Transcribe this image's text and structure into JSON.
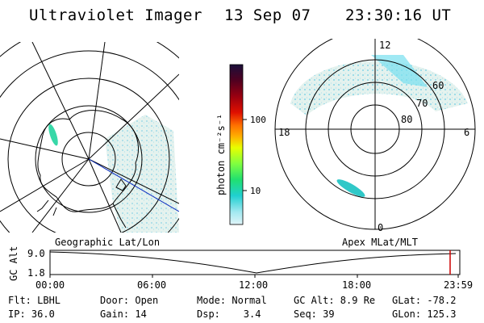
{
  "header": {
    "instrument": "Ultraviolet Imager",
    "date": "13 Sep 07",
    "time": "23:30:16 UT"
  },
  "left_map": {
    "caption": "Geographic Lat/Lon"
  },
  "right_map": {
    "caption": "Apex MLat/MLT",
    "mlt_labels": {
      "top": "12",
      "left": "18",
      "right": "6",
      "bottom": "0"
    },
    "lat_labels": [
      "60",
      "70",
      "80"
    ]
  },
  "colorbar": {
    "unit_label": "photon cm⁻²s⁻¹",
    "ticks": [
      "100",
      "10"
    ],
    "colors": [
      "#1a0f3a",
      "#500020",
      "#8a0010",
      "#c00000",
      "#f03000",
      "#ff8000",
      "#ffd000",
      "#e0ff00",
      "#80ff40",
      "#20e070",
      "#20d0d0",
      "#80e8f0",
      "#d0f0f8"
    ]
  },
  "timeline": {
    "axis_label": "GC Alt",
    "y_ticks": [
      "9.0",
      "1.8"
    ],
    "x_ticks": [
      "00:00",
      "06:00",
      "12:00",
      "18:00",
      "23:59"
    ],
    "marker_color": "#cc0000"
  },
  "footer": {
    "rows": [
      [
        "Flt: LBHL",
        "Door: Open",
        "Mode: Normal",
        "GC Alt: 8.9 Re",
        "GLat: -78.2"
      ],
      [
        "IP: 36.0",
        "Gain: 14",
        "Dsp:    3.4",
        "Seq: 39",
        "GLon: 125.3"
      ]
    ]
  }
}
